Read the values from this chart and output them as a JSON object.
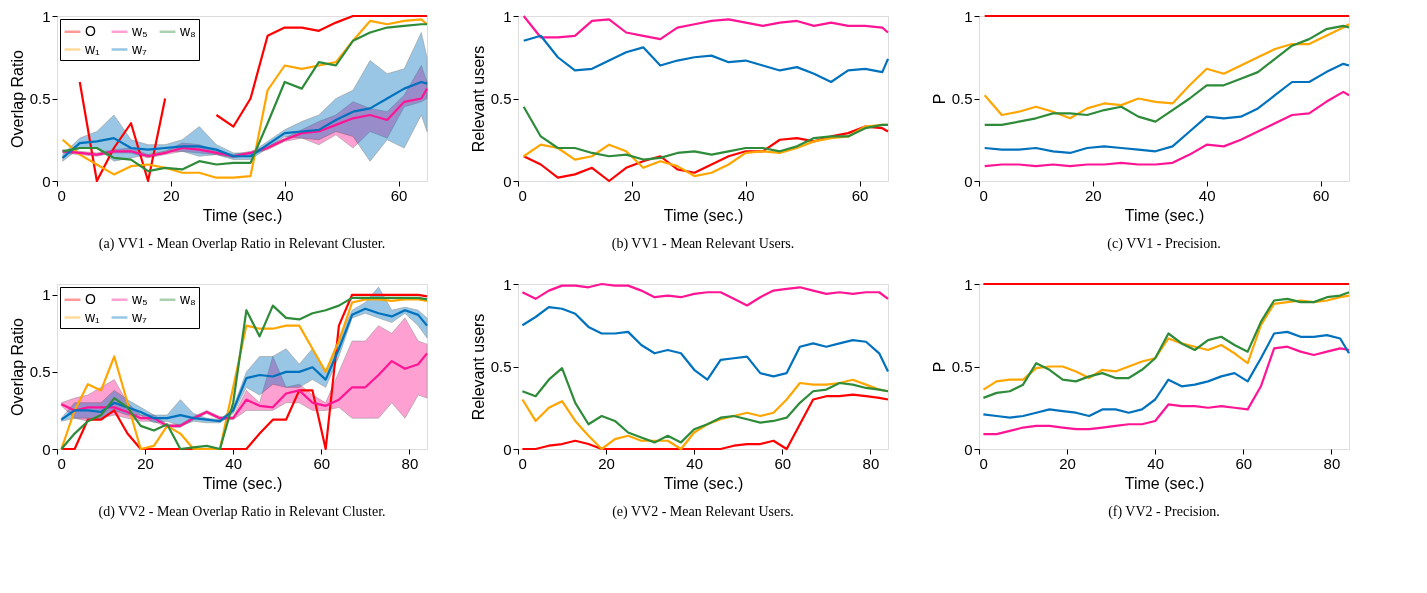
{
  "chart_data": [
    {
      "type": "line",
      "title": "(a) VV1 - Mean Overlap Ratio in Relevant Cluster.",
      "xlabel": "Time (sec.)",
      "ylabel": "Overlap Ratio",
      "xlim": [
        0,
        65
      ],
      "xticks": [
        0,
        20,
        40,
        60
      ],
      "ylim": [
        0,
        1
      ],
      "yticks": [
        0,
        0.5,
        1
      ],
      "grid": false,
      "legend": "top left",
      "line_style": "solid",
      "marker": "none",
      "x": [
        1,
        4,
        7,
        10,
        13,
        16,
        19,
        22,
        25,
        28,
        31,
        34,
        37,
        40,
        43,
        46,
        49,
        52,
        55,
        58,
        61,
        64,
        65
      ],
      "series": [
        {
          "name": "O",
          "color": "#ff0000",
          "values": [
            null,
            0.6,
            0,
            0.2,
            0.35,
            0,
            0.5,
            null,
            null,
            0.4,
            0.33,
            0.5,
            0.88,
            0.93,
            0.93,
            0.91,
            0.96,
            1.0,
            1.0,
            1.0,
            1.0,
            1.0,
            1.0
          ]
        },
        {
          "name": "w₁",
          "color": "#ffa500",
          "values": [
            0.25,
            0.16,
            0.1,
            0.04,
            0.09,
            0.1,
            0.08,
            0.05,
            0.05,
            0.02,
            0.02,
            0.03,
            0.55,
            0.7,
            0.68,
            0.7,
            0.72,
            0.85,
            0.97,
            0.95,
            0.97,
            0.98,
            0.95
          ]
        },
        {
          "name": "w₅",
          "color": "#ff1493",
          "values": [
            0.18,
            0.17,
            0.16,
            0.18,
            0.18,
            0.15,
            0.17,
            0.2,
            0.19,
            0.17,
            0.15,
            0.17,
            0.2,
            0.25,
            0.29,
            0.3,
            0.34,
            0.38,
            0.4,
            0.37,
            0.48,
            0.5,
            0.56
          ],
          "lower": [
            0.17,
            0.16,
            0.15,
            0.17,
            0.17,
            0.14,
            0.16,
            0.18,
            0.17,
            0.16,
            0.14,
            0.16,
            0.19,
            0.24,
            0.26,
            0.22,
            0.28,
            0.2,
            0.3,
            0.26,
            0.45,
            0.48,
            0.5
          ],
          "upper": [
            0.19,
            0.18,
            0.17,
            0.19,
            0.2,
            0.16,
            0.18,
            0.23,
            0.22,
            0.18,
            0.16,
            0.18,
            0.21,
            0.26,
            0.31,
            0.36,
            0.4,
            0.48,
            0.44,
            0.42,
            0.52,
            0.7,
            0.6
          ]
        },
        {
          "name": "w₇",
          "color": "#0072bd",
          "values": [
            0.14,
            0.23,
            0.24,
            0.26,
            0.2,
            0.19,
            0.2,
            0.21,
            0.21,
            0.19,
            0.15,
            0.15,
            0.22,
            0.29,
            0.3,
            0.31,
            0.37,
            0.42,
            0.44,
            0.5,
            0.56,
            0.6,
            0.59
          ],
          "lower": [
            0.12,
            0.2,
            0.2,
            0.12,
            0.14,
            0.16,
            0.18,
            0.18,
            0.15,
            0.16,
            0.13,
            0.13,
            0.2,
            0.27,
            0.26,
            0.25,
            0.3,
            0.27,
            0.12,
            0.25,
            0.2,
            0.4,
            0.3
          ],
          "upper": [
            0.16,
            0.26,
            0.3,
            0.4,
            0.25,
            0.22,
            0.22,
            0.25,
            0.33,
            0.22,
            0.17,
            0.17,
            0.24,
            0.31,
            0.36,
            0.4,
            0.5,
            0.55,
            0.73,
            0.65,
            0.68,
            0.9,
            0.75
          ]
        },
        {
          "name": "w₈",
          "color": "#2e8b3a",
          "values": [
            0.18,
            0.2,
            0.2,
            0.14,
            0.13,
            0.06,
            0.08,
            0.07,
            0.12,
            0.1,
            0.11,
            0.11,
            0.35,
            0.6,
            0.56,
            0.72,
            0.7,
            0.85,
            0.9,
            0.93,
            0.94,
            0.95,
            0.95
          ]
        }
      ]
    },
    {
      "type": "line",
      "title": "(b) VV1 - Mean Relevant Users.",
      "xlabel": "Time (sec.)",
      "ylabel": "Relevant users",
      "xlim": [
        0,
        65
      ],
      "xticks": [
        0,
        20,
        40,
        60
      ],
      "ylim": [
        0,
        1
      ],
      "yticks": [
        0,
        0.5,
        1
      ],
      "grid": false,
      "legend": false,
      "line_style": "solid",
      "marker": "none",
      "x": [
        1,
        4,
        7,
        10,
        13,
        16,
        19,
        22,
        25,
        28,
        31,
        34,
        37,
        40,
        43,
        46,
        49,
        52,
        55,
        58,
        61,
        64,
        65
      ],
      "series": [
        {
          "color": "#ff0000",
          "values": [
            0.15,
            0.1,
            0.02,
            0.04,
            0.08,
            0.0,
            0.08,
            0.12,
            0.15,
            0.07,
            0.05,
            0.1,
            0.15,
            0.18,
            0.18,
            0.25,
            0.26,
            0.24,
            0.27,
            0.29,
            0.33,
            0.32,
            0.3
          ]
        },
        {
          "color": "#ffa500",
          "values": [
            0.15,
            0.22,
            0.2,
            0.13,
            0.15,
            0.22,
            0.18,
            0.08,
            0.12,
            0.09,
            0.03,
            0.05,
            0.1,
            0.17,
            0.18,
            0.17,
            0.2,
            0.24,
            0.26,
            0.27,
            0.33,
            0.34,
            0.34
          ]
        },
        {
          "color": "#ff1493",
          "values": [
            1.0,
            0.87,
            0.87,
            0.88,
            0.97,
            0.98,
            0.9,
            0.88,
            0.86,
            0.93,
            0.95,
            0.97,
            0.98,
            0.96,
            0.94,
            0.96,
            0.97,
            0.94,
            0.96,
            0.94,
            0.94,
            0.93,
            0.9
          ]
        },
        {
          "color": "#0072bd",
          "values": [
            0.85,
            0.88,
            0.75,
            0.67,
            0.68,
            0.73,
            0.78,
            0.81,
            0.7,
            0.73,
            0.75,
            0.76,
            0.72,
            0.73,
            0.7,
            0.67,
            0.69,
            0.65,
            0.6,
            0.67,
            0.68,
            0.66,
            0.74
          ]
        },
        {
          "color": "#2e8b3a",
          "values": [
            0.45,
            0.27,
            0.2,
            0.2,
            0.17,
            0.15,
            0.16,
            0.13,
            0.14,
            0.17,
            0.18,
            0.16,
            0.18,
            0.2,
            0.2,
            0.18,
            0.21,
            0.26,
            0.27,
            0.27,
            0.32,
            0.34,
            0.34
          ]
        }
      ]
    },
    {
      "type": "line",
      "title": "(c) VV1 - Precision.",
      "xlabel": "Time (sec.)",
      "ylabel": "P",
      "xlim": [
        0,
        65
      ],
      "xticks": [
        0,
        20,
        40,
        60
      ],
      "ylim": [
        0,
        1
      ],
      "yticks": [
        0,
        0.5,
        1
      ],
      "grid": false,
      "legend": false,
      "line_style": "solid",
      "marker": "none",
      "x": [
        1,
        4,
        7,
        10,
        13,
        16,
        19,
        22,
        25,
        28,
        31,
        34,
        37,
        40,
        43,
        46,
        49,
        52,
        55,
        58,
        61,
        64,
        65
      ],
      "series": [
        {
          "color": "#ff0000",
          "values": [
            1,
            1,
            1,
            1,
            1,
            1,
            1,
            1,
            1,
            1,
            1,
            1,
            1,
            1,
            1,
            1,
            1,
            1,
            1,
            1,
            1,
            1,
            1
          ]
        },
        {
          "color": "#ffa500",
          "values": [
            0.52,
            0.4,
            0.42,
            0.45,
            0.42,
            0.38,
            0.44,
            0.47,
            0.46,
            0.5,
            0.48,
            0.47,
            0.58,
            0.68,
            0.65,
            0.7,
            0.75,
            0.8,
            0.83,
            0.83,
            0.88,
            0.93,
            0.95
          ]
        },
        {
          "color": "#ff1493",
          "values": [
            0.09,
            0.1,
            0.1,
            0.09,
            0.1,
            0.09,
            0.1,
            0.1,
            0.11,
            0.1,
            0.1,
            0.11,
            0.16,
            0.22,
            0.21,
            0.25,
            0.3,
            0.35,
            0.4,
            0.41,
            0.48,
            0.54,
            0.52
          ]
        },
        {
          "color": "#0072bd",
          "values": [
            0.2,
            0.19,
            0.19,
            0.2,
            0.18,
            0.17,
            0.2,
            0.21,
            0.2,
            0.19,
            0.18,
            0.21,
            0.3,
            0.39,
            0.38,
            0.39,
            0.44,
            0.52,
            0.6,
            0.6,
            0.66,
            0.71,
            0.7
          ]
        },
        {
          "color": "#2e8b3a",
          "values": [
            0.34,
            0.34,
            0.36,
            0.38,
            0.41,
            0.41,
            0.4,
            0.43,
            0.45,
            0.39,
            0.36,
            0.43,
            0.5,
            0.58,
            0.58,
            0.62,
            0.66,
            0.74,
            0.82,
            0.86,
            0.92,
            0.94,
            0.93
          ]
        }
      ]
    },
    {
      "type": "line",
      "title": "(d) VV2 - Mean Overlap Ratio in Relevant Cluster.",
      "xlabel": "Time (sec.)",
      "ylabel": "Overlap Ratio",
      "xlim": [
        0,
        84
      ],
      "xticks": [
        0,
        20,
        40,
        60,
        80
      ],
      "ylim": [
        0,
        1.07
      ],
      "yticks": [
        0,
        0.5,
        1
      ],
      "grid": false,
      "legend": "top left",
      "line_style": "solid",
      "marker": "none",
      "x": [
        1,
        4,
        7,
        10,
        13,
        16,
        19,
        22,
        25,
        28,
        31,
        34,
        37,
        40,
        43,
        46,
        49,
        52,
        55,
        58,
        61,
        64,
        67,
        70,
        73,
        76,
        79,
        82,
        84
      ],
      "series": [
        {
          "name": "O",
          "color": "#ff0000",
          "values": [
            0,
            0,
            0.19,
            0.19,
            0.25,
            0.1,
            0,
            0,
            0,
            0,
            0,
            0,
            0,
            0,
            0,
            0.1,
            0.19,
            0.19,
            0.38,
            0.38,
            0,
            0.8,
            1.0,
            1.0,
            1.0,
            1.0,
            1.0,
            1.0,
            0.99
          ]
        },
        {
          "name": "w₁",
          "color": "#ffa500",
          "values": [
            0,
            0.25,
            0.42,
            0.38,
            0.6,
            0.3,
            0,
            0.02,
            0.15,
            0.1,
            0,
            0,
            0,
            0.4,
            0.8,
            0.78,
            0.78,
            0.8,
            0.8,
            0.65,
            0.5,
            0.7,
            0.95,
            0.97,
            0.97,
            0.96,
            0.97,
            0.97,
            0.96
          ]
        },
        {
          "name": "w₅",
          "color": "#ff1493",
          "values": [
            0.29,
            0.25,
            0.27,
            0.27,
            0.27,
            0.24,
            0.2,
            0.2,
            0.15,
            0.15,
            0.2,
            0.24,
            0.2,
            0.2,
            0.32,
            0.28,
            0.27,
            0.36,
            0.38,
            0.3,
            0.28,
            0.32,
            0.4,
            0.4,
            0.48,
            0.57,
            0.52,
            0.55,
            0.62
          ],
          "lower": [
            0.28,
            0.2,
            0.18,
            0.2,
            0.22,
            0.2,
            0.18,
            0.18,
            0.14,
            0.14,
            0.19,
            0.23,
            0.19,
            0.19,
            0.25,
            0.25,
            0.25,
            0.3,
            0.3,
            0.25,
            0.25,
            0.27,
            0.2,
            0.2,
            0.2,
            0.3,
            0.2,
            0.35,
            0.33
          ],
          "upper": [
            0.3,
            0.33,
            0.35,
            0.4,
            0.45,
            0.3,
            0.22,
            0.22,
            0.16,
            0.16,
            0.21,
            0.25,
            0.21,
            0.21,
            0.38,
            0.3,
            0.6,
            0.4,
            0.42,
            0.35,
            0.3,
            0.5,
            0.7,
            0.7,
            0.8,
            0.75,
            0.85,
            0.7,
            0.68
          ]
        },
        {
          "name": "w₇",
          "color": "#0072bd",
          "values": [
            0.19,
            0.25,
            0.25,
            0.24,
            0.3,
            0.27,
            0.24,
            0.2,
            0.2,
            0.22,
            0.2,
            0.19,
            0.18,
            0.25,
            0.46,
            0.48,
            0.47,
            0.5,
            0.5,
            0.53,
            0.45,
            0.65,
            0.87,
            0.91,
            0.88,
            0.86,
            0.9,
            0.87,
            0.8
          ],
          "lower": [
            0.18,
            0.2,
            0.2,
            0.2,
            0.25,
            0.22,
            0.22,
            0.17,
            0.18,
            0.15,
            0.18,
            0.17,
            0.17,
            0.23,
            0.4,
            0.35,
            0.42,
            0.4,
            0.4,
            0.45,
            0.4,
            0.6,
            0.85,
            0.88,
            0.85,
            0.82,
            0.88,
            0.8,
            0.72
          ],
          "upper": [
            0.2,
            0.3,
            0.3,
            0.3,
            0.38,
            0.32,
            0.27,
            0.22,
            0.22,
            0.32,
            0.23,
            0.2,
            0.19,
            0.27,
            0.5,
            0.6,
            0.6,
            0.65,
            0.55,
            0.65,
            0.5,
            0.72,
            0.9,
            0.95,
            1.05,
            0.9,
            0.92,
            0.9,
            0.85
          ]
        },
        {
          "name": "w₈",
          "color": "#2e8b3a",
          "values": [
            0,
            0.1,
            0.18,
            0.22,
            0.33,
            0.27,
            0.15,
            0.12,
            0.16,
            0.0,
            0.01,
            0.02,
            0.0,
            0.3,
            0.9,
            0.73,
            0.93,
            0.85,
            0.84,
            0.88,
            0.9,
            0.93,
            0.98,
            0.98,
            0.98,
            0.98,
            0.98,
            0.98,
            0.97
          ]
        }
      ]
    },
    {
      "type": "line",
      "title": "(e) VV2 - Mean Relevant Users.",
      "xlabel": "Time (sec.)",
      "ylabel": "Relevant users",
      "xlim": [
        0,
        84
      ],
      "xticks": [
        0,
        20,
        40,
        60,
        80
      ],
      "ylim": [
        0,
        1
      ],
      "yticks": [
        0,
        0.5,
        1
      ],
      "grid": false,
      "legend": false,
      "line_style": "solid",
      "marker": "none",
      "x": [
        1,
        4,
        7,
        10,
        13,
        16,
        19,
        22,
        25,
        28,
        31,
        34,
        37,
        40,
        43,
        46,
        49,
        52,
        55,
        58,
        61,
        64,
        67,
        70,
        73,
        76,
        79,
        82,
        84
      ],
      "series": [
        {
          "color": "#ff0000",
          "values": [
            0,
            0,
            0.02,
            0.03,
            0.05,
            0.03,
            0,
            0,
            0,
            0,
            0,
            0,
            0,
            0,
            0,
            0,
            0.02,
            0.03,
            0.03,
            0.05,
            0,
            0.15,
            0.3,
            0.32,
            0.32,
            0.33,
            0.32,
            0.31,
            0.3
          ]
        },
        {
          "color": "#ffa500",
          "values": [
            0.3,
            0.17,
            0.25,
            0.29,
            0.17,
            0.08,
            0,
            0.06,
            0.08,
            0.05,
            0.05,
            0.05,
            0,
            0.1,
            0.15,
            0.18,
            0.2,
            0.22,
            0.2,
            0.22,
            0.3,
            0.4,
            0.39,
            0.39,
            0.4,
            0.42,
            0.39,
            0.36,
            0.35
          ]
        },
        {
          "color": "#ff1493",
          "values": [
            0.95,
            0.91,
            0.96,
            0.99,
            0.99,
            0.98,
            1.0,
            0.99,
            0.99,
            0.96,
            0.92,
            0.93,
            0.92,
            0.94,
            0.95,
            0.95,
            0.91,
            0.87,
            0.92,
            0.96,
            0.97,
            0.98,
            0.96,
            0.94,
            0.95,
            0.94,
            0.95,
            0.95,
            0.91
          ]
        },
        {
          "color": "#0072bd",
          "values": [
            0.75,
            0.8,
            0.86,
            0.85,
            0.82,
            0.74,
            0.7,
            0.7,
            0.71,
            0.63,
            0.58,
            0.6,
            0.58,
            0.48,
            0.42,
            0.54,
            0.55,
            0.56,
            0.46,
            0.44,
            0.46,
            0.62,
            0.64,
            0.62,
            0.64,
            0.66,
            0.65,
            0.58,
            0.47
          ]
        },
        {
          "color": "#2e8b3a",
          "values": [
            0.35,
            0.32,
            0.42,
            0.49,
            0.28,
            0.15,
            0.2,
            0.17,
            0.1,
            0.07,
            0.04,
            0.08,
            0.04,
            0.12,
            0.15,
            0.19,
            0.2,
            0.18,
            0.16,
            0.17,
            0.19,
            0.28,
            0.35,
            0.36,
            0.4,
            0.39,
            0.37,
            0.36,
            0.35
          ]
        }
      ]
    },
    {
      "type": "line",
      "title": "(f) VV2 - Precision.",
      "xlabel": "Time (sec.)",
      "ylabel": "P",
      "xlim": [
        0,
        84
      ],
      "xticks": [
        0,
        20,
        40,
        60,
        80
      ],
      "ylim": [
        0,
        1
      ],
      "yticks": [
        0,
        0.5,
        1
      ],
      "grid": false,
      "legend": false,
      "line_style": "solid",
      "marker": "none",
      "x": [
        1,
        4,
        7,
        10,
        13,
        16,
        19,
        22,
        25,
        28,
        31,
        34,
        37,
        40,
        43,
        46,
        49,
        52,
        55,
        58,
        61,
        64,
        67,
        70,
        73,
        76,
        79,
        82,
        84
      ],
      "series": [
        {
          "color": "#ff0000",
          "values": [
            1,
            1,
            1,
            1,
            1,
            1,
            1,
            1,
            1,
            1,
            1,
            1,
            1,
            1,
            1,
            1,
            1,
            1,
            1,
            1,
            1,
            1,
            1,
            1,
            1,
            1,
            1,
            1,
            1
          ]
        },
        {
          "color": "#ffa500",
          "values": [
            0.36,
            0.41,
            0.42,
            0.42,
            0.49,
            0.5,
            0.5,
            0.47,
            0.43,
            0.48,
            0.47,
            0.5,
            0.53,
            0.55,
            0.67,
            0.64,
            0.62,
            0.6,
            0.63,
            0.58,
            0.52,
            0.75,
            0.88,
            0.89,
            0.9,
            0.89,
            0.9,
            0.92,
            0.93
          ]
        },
        {
          "color": "#ff1493",
          "values": [
            0.09,
            0.09,
            0.11,
            0.13,
            0.14,
            0.14,
            0.13,
            0.12,
            0.12,
            0.13,
            0.14,
            0.15,
            0.15,
            0.17,
            0.27,
            0.26,
            0.26,
            0.25,
            0.26,
            0.25,
            0.24,
            0.38,
            0.61,
            0.62,
            0.59,
            0.57,
            0.59,
            0.61,
            0.6
          ]
        },
        {
          "color": "#0072bd",
          "values": [
            0.21,
            0.2,
            0.19,
            0.2,
            0.22,
            0.24,
            0.23,
            0.22,
            0.2,
            0.24,
            0.24,
            0.22,
            0.24,
            0.3,
            0.42,
            0.38,
            0.39,
            0.41,
            0.44,
            0.46,
            0.41,
            0.55,
            0.7,
            0.71,
            0.68,
            0.68,
            0.69,
            0.67,
            0.58
          ]
        },
        {
          "color": "#2e8b3a",
          "values": [
            0.31,
            0.34,
            0.35,
            0.39,
            0.52,
            0.48,
            0.42,
            0.41,
            0.44,
            0.46,
            0.43,
            0.43,
            0.48,
            0.55,
            0.7,
            0.64,
            0.6,
            0.66,
            0.68,
            0.63,
            0.59,
            0.77,
            0.9,
            0.91,
            0.89,
            0.89,
            0.92,
            0.93,
            0.95
          ]
        }
      ]
    }
  ]
}
